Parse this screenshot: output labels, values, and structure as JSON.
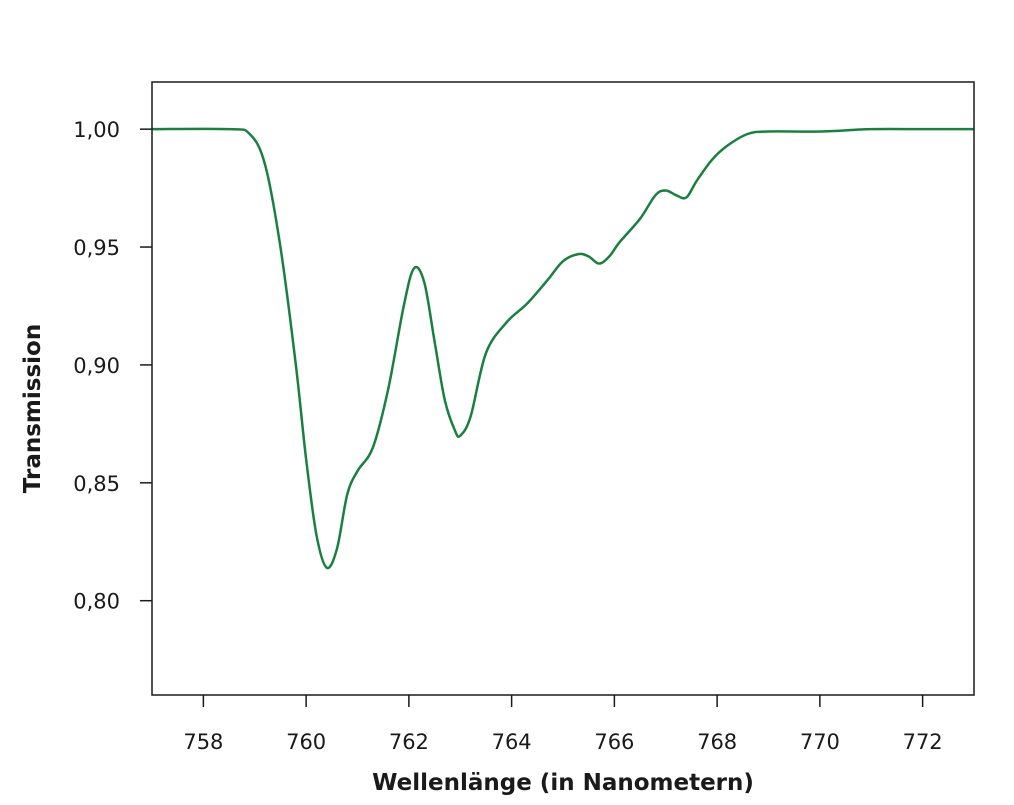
{
  "chart_data": {
    "type": "line",
    "title": "",
    "xlabel": "Wellenlänge (in Nanometern)",
    "ylabel": "Transmission",
    "xlim": [
      757,
      773
    ],
    "ylim": [
      0.76,
      1.02
    ],
    "x_ticks": [
      758,
      760,
      762,
      764,
      766,
      768,
      770,
      772
    ],
    "x_tick_labels": [
      "758",
      "760",
      "762",
      "764",
      "766",
      "768",
      "770",
      "772"
    ],
    "y_ticks": [
      0.8,
      0.85,
      0.9,
      0.95,
      1.0
    ],
    "y_tick_labels": [
      "0,80",
      "0,85",
      "0,90",
      "0,95",
      "1,00"
    ],
    "grid": false,
    "series": [
      {
        "color": "#1a8040",
        "x": [
          757,
          758.5,
          758.9,
          759.2,
          759.5,
          759.8,
          760.0,
          760.2,
          760.4,
          760.6,
          760.8,
          761.0,
          761.3,
          761.6,
          761.9,
          762.1,
          762.3,
          762.5,
          762.7,
          762.9,
          763.0,
          763.2,
          763.5,
          763.9,
          764.3,
          764.7,
          765.0,
          765.3,
          765.5,
          765.7,
          765.9,
          766.1,
          766.5,
          766.8,
          767.0,
          767.2,
          767.4,
          767.6,
          767.9,
          768.2,
          768.6,
          769.0,
          770,
          771,
          772,
          773
        ],
        "y": [
          1.0,
          1.0,
          0.998,
          0.985,
          0.95,
          0.9,
          0.86,
          0.828,
          0.814,
          0.822,
          0.845,
          0.855,
          0.865,
          0.89,
          0.925,
          0.941,
          0.935,
          0.91,
          0.885,
          0.872,
          0.87,
          0.878,
          0.905,
          0.918,
          0.926,
          0.936,
          0.944,
          0.947,
          0.946,
          0.943,
          0.946,
          0.952,
          0.962,
          0.972,
          0.974,
          0.972,
          0.971,
          0.978,
          0.987,
          0.993,
          0.998,
          0.999,
          0.999,
          1.0,
          1.0,
          1.0
        ]
      }
    ]
  }
}
